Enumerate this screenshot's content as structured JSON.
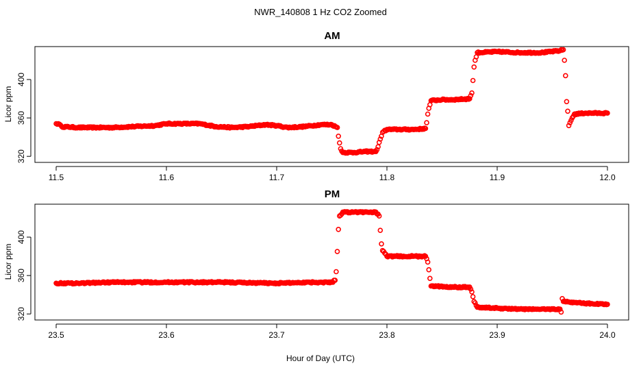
{
  "chart_data": {
    "type": "scatter",
    "title": "NWR_140808  1 Hz CO2 Zoomed",
    "xlabel": "Hour of Day (UTC)",
    "marker_color": "#ff0000",
    "panels": [
      {
        "title": "AM",
        "ylabel": "Licor ppm",
        "xlim": [
          11.5,
          12.0
        ],
        "ylim": [
          318,
          430
        ],
        "x_ticks": [
          "11.5",
          "11.6",
          "11.7",
          "11.8",
          "11.9",
          "12.0"
        ],
        "y_ticks": [
          "320",
          "360",
          "400"
        ],
        "points": [
          [
            11.5,
            354
          ],
          [
            11.502,
            354
          ],
          [
            11.505,
            351
          ],
          [
            11.52,
            350
          ],
          [
            11.55,
            350
          ],
          [
            11.57,
            351
          ],
          [
            11.59,
            352
          ],
          [
            11.6,
            354
          ],
          [
            11.615,
            354
          ],
          [
            11.63,
            354
          ],
          [
            11.645,
            351
          ],
          [
            11.66,
            350
          ],
          [
            11.675,
            351
          ],
          [
            11.69,
            353
          ],
          [
            11.7,
            352
          ],
          [
            11.71,
            350
          ],
          [
            11.725,
            351
          ],
          [
            11.74,
            353
          ],
          [
            11.75,
            353
          ],
          [
            11.755,
            350
          ],
          [
            11.756,
            341
          ],
          [
            11.757,
            334
          ],
          [
            11.758,
            328
          ],
          [
            11.76,
            324
          ],
          [
            11.77,
            324
          ],
          [
            11.78,
            325
          ],
          [
            11.79,
            325
          ],
          [
            11.792,
            330
          ],
          [
            11.794,
            338
          ],
          [
            11.796,
            345
          ],
          [
            11.8,
            348
          ],
          [
            11.81,
            348
          ],
          [
            11.825,
            348
          ],
          [
            11.835,
            349
          ],
          [
            11.836,
            355
          ],
          [
            11.837,
            364
          ],
          [
            11.838,
            370
          ],
          [
            11.84,
            378
          ],
          [
            11.85,
            379
          ],
          [
            11.86,
            379
          ],
          [
            11.875,
            380
          ],
          [
            11.877,
            386
          ],
          [
            11.878,
            399
          ],
          [
            11.879,
            413
          ],
          [
            11.88,
            420
          ],
          [
            11.882,
            428
          ],
          [
            11.9,
            429
          ],
          [
            11.92,
            428
          ],
          [
            11.94,
            428
          ],
          [
            11.957,
            430
          ],
          [
            11.96,
            431
          ],
          [
            11.961,
            420
          ],
          [
            11.962,
            404
          ],
          [
            11.963,
            377
          ],
          [
            11.964,
            367
          ],
          [
            11.965,
            352
          ],
          [
            11.966,
            355
          ],
          [
            11.968,
            360
          ],
          [
            11.97,
            364
          ],
          [
            11.98,
            365
          ],
          [
            11.99,
            365
          ],
          [
            12.0,
            365
          ]
        ]
      },
      {
        "title": "PM",
        "ylabel": "Licor ppm",
        "xlim": [
          23.5,
          24.0
        ],
        "ylim": [
          318,
          430
        ],
        "x_ticks": [
          "23.5",
          "23.6",
          "23.7",
          "23.8",
          "23.9",
          "24.0"
        ],
        "y_ticks": [
          "320",
          "360",
          "400"
        ],
        "points": [
          [
            23.5,
            352
          ],
          [
            23.52,
            352
          ],
          [
            23.55,
            353
          ],
          [
            23.6,
            353
          ],
          [
            23.65,
            353
          ],
          [
            23.7,
            352
          ],
          [
            23.73,
            353
          ],
          [
            23.75,
            353
          ],
          [
            23.753,
            355
          ],
          [
            23.754,
            364
          ],
          [
            23.755,
            385
          ],
          [
            23.756,
            408
          ],
          [
            23.757,
            422
          ],
          [
            23.76,
            426
          ],
          [
            23.77,
            426
          ],
          [
            23.78,
            426
          ],
          [
            23.79,
            426
          ],
          [
            23.793,
            422
          ],
          [
            23.794,
            407
          ],
          [
            23.795,
            393
          ],
          [
            23.796,
            386
          ],
          [
            23.8,
            380
          ],
          [
            23.82,
            380
          ],
          [
            23.835,
            380
          ],
          [
            23.837,
            374
          ],
          [
            23.838,
            366
          ],
          [
            23.839,
            357
          ],
          [
            23.84,
            349
          ],
          [
            23.86,
            348
          ],
          [
            23.875,
            348
          ],
          [
            23.877,
            343
          ],
          [
            23.878,
            338
          ],
          [
            23.879,
            333
          ],
          [
            23.882,
            327
          ],
          [
            23.9,
            326
          ],
          [
            23.92,
            325
          ],
          [
            23.94,
            325
          ],
          [
            23.957,
            325
          ],
          [
            23.958,
            322
          ],
          [
            23.959,
            336
          ],
          [
            23.96,
            333
          ],
          [
            23.97,
            332
          ],
          [
            23.98,
            331
          ],
          [
            24.0,
            330
          ]
        ]
      }
    ]
  }
}
